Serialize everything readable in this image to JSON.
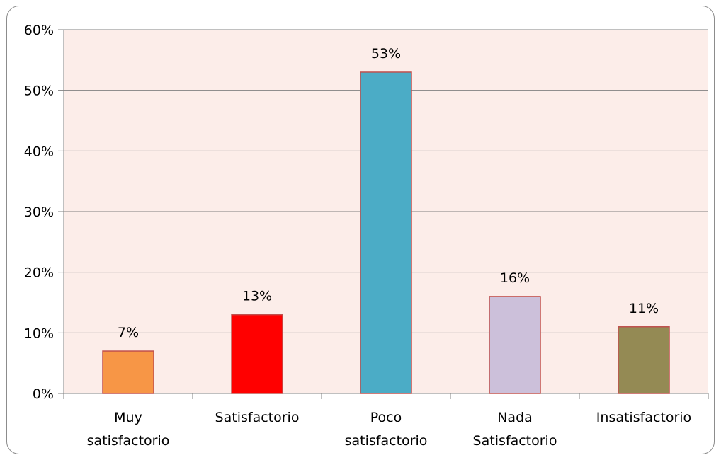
{
  "chart_data": {
    "type": "bar",
    "categories": [
      [
        "Muy",
        "satisfactorio"
      ],
      [
        "Satisfactorio"
      ],
      [
        "Poco",
        "satisfactorio"
      ],
      [
        "Nada",
        "Satisfactorio"
      ],
      [
        "Insatisfactorio"
      ]
    ],
    "values": [
      7,
      13,
      53,
      16,
      11
    ],
    "data_labels": [
      "7%",
      "13%",
      "53%",
      "16%",
      "11%"
    ],
    "bar_colors": [
      "#F79646",
      "#FF0000",
      "#4BACC6",
      "#CCC0DA",
      "#948A54"
    ],
    "bar_border_color": "#C0504D",
    "ylim": [
      0,
      60
    ],
    "ytick_values": [
      0,
      10,
      20,
      30,
      40,
      50,
      60
    ],
    "ytick_labels": [
      "0%",
      "10%",
      "20%",
      "30%",
      "40%",
      "50%",
      "60%"
    ],
    "title": "",
    "xlabel": "",
    "ylabel": "",
    "grid": true,
    "legend": "none",
    "plot_background": "#FCEDE9",
    "gridline_color": "#808080"
  }
}
